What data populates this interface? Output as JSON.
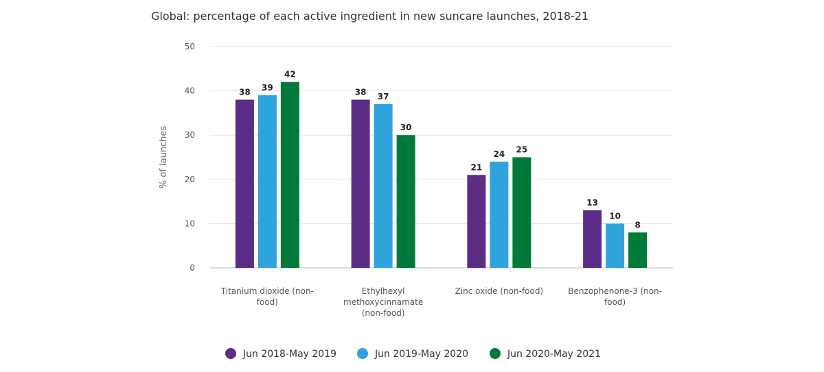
{
  "chart_data": {
    "type": "bar",
    "title": "Global: percentage of each active ingredient in new suncare launches, 2018-21",
    "xlabel": "",
    "ylabel": "% of launches",
    "ylim": [
      0,
      50
    ],
    "yticks": [
      0,
      10,
      20,
      30,
      40,
      50
    ],
    "grid": true,
    "legend_position": "bottom",
    "categories": [
      [
        "Titanium dioxide (non-",
        "food)"
      ],
      [
        "Ethylhexyl",
        "methoxycinnamate",
        "(non-food)"
      ],
      [
        "Zinc oxide (non-food)"
      ],
      [
        "Benzophenone-3 (non-",
        "food)"
      ]
    ],
    "series": [
      {
        "name": "Jun 2018-May 2019",
        "color": "#5b2d87",
        "values": [
          38,
          38,
          21,
          13
        ]
      },
      {
        "name": "Jun 2019-May 2020",
        "color": "#2fa4dc",
        "values": [
          39,
          37,
          24,
          10
        ]
      },
      {
        "name": "Jun 2020-May 2021",
        "color": "#007a3a",
        "values": [
          42,
          30,
          25,
          8
        ]
      }
    ]
  }
}
